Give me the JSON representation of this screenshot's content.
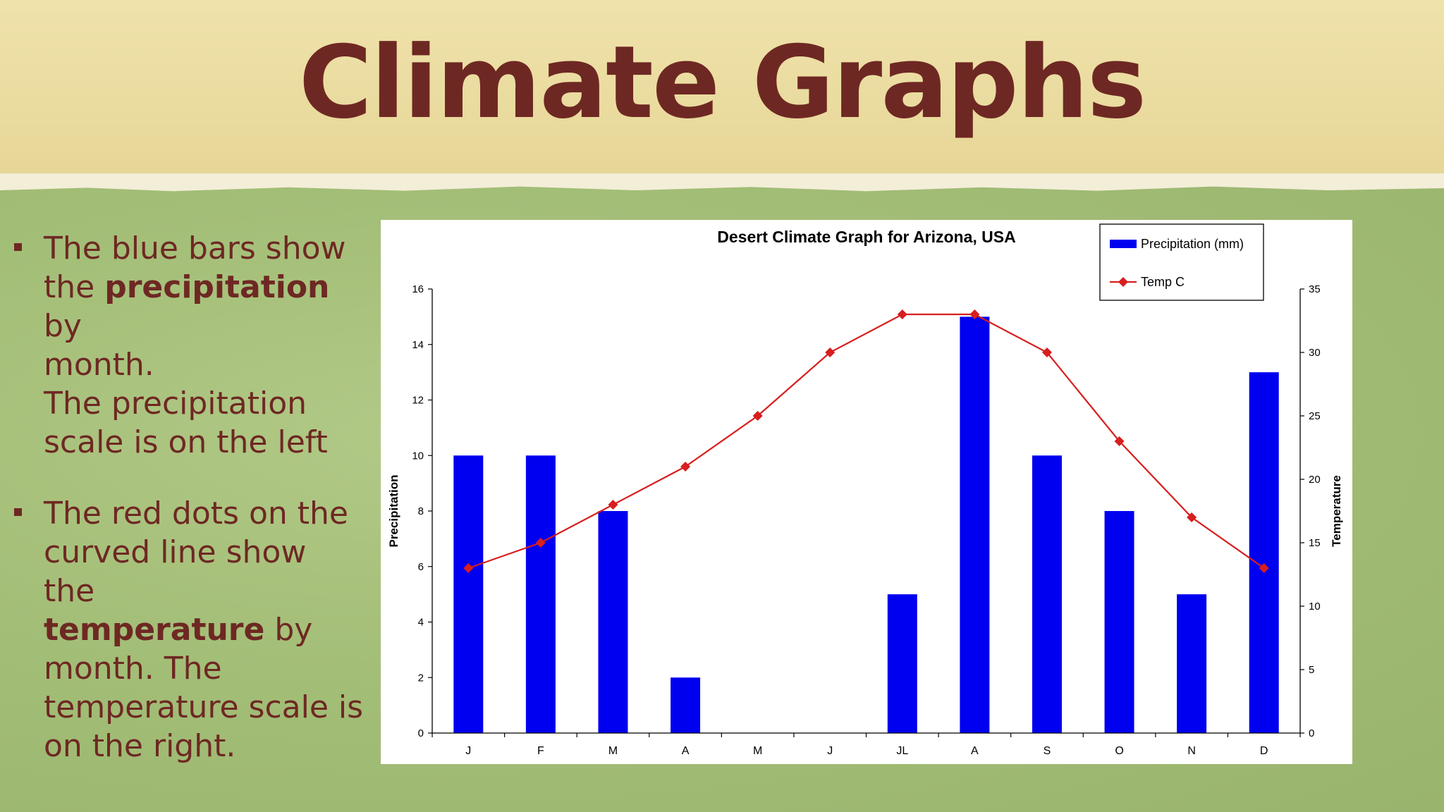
{
  "slide": {
    "title": "Climate Graphs",
    "bullets": [
      {
        "line1_a": "The blue bars show",
        "line2_a": "the ",
        "line2_bold": "precipitation",
        "line2_b": " by",
        "line3": "month.",
        "line4": "The precipitation",
        "line5": "scale is on the left"
      },
      {
        "line1": "The red dots on the",
        "line2": "curved line show the",
        "line3_bold": "temperature",
        "line3_b": " by",
        "line4": "month. The",
        "line5": "temperature scale is",
        "line6": "on the right."
      }
    ]
  },
  "chart_data": {
    "type": "bar",
    "title": "Desert Climate Graph for Arizona, USA",
    "categories": [
      "J",
      "F",
      "M",
      "A",
      "M",
      "J",
      "JL",
      "A",
      "S",
      "O",
      "N",
      "D"
    ],
    "series": [
      {
        "name": "Precipitation (mm)",
        "type": "bar",
        "axis": "left",
        "color": "#0000f0",
        "values": [
          10,
          10,
          8,
          2,
          0,
          0,
          5,
          15,
          10,
          8,
          5,
          13
        ]
      },
      {
        "name": "Temp C",
        "type": "line",
        "axis": "right",
        "color": "#d81e1e",
        "marker": "diamond",
        "values": [
          13,
          15,
          18,
          21,
          25,
          30,
          33,
          33,
          30,
          23,
          17,
          13
        ]
      }
    ],
    "ylabel": "Precipitation",
    "y2label": "Temperature",
    "ylim": [
      0,
      16
    ],
    "yticks": [
      0,
      2,
      4,
      6,
      8,
      10,
      12,
      14,
      16
    ],
    "y2lim": [
      0,
      35
    ],
    "y2ticks": [
      0,
      5,
      10,
      15,
      20,
      25,
      30,
      35
    ],
    "legend_position": "top-right",
    "grid": false
  }
}
